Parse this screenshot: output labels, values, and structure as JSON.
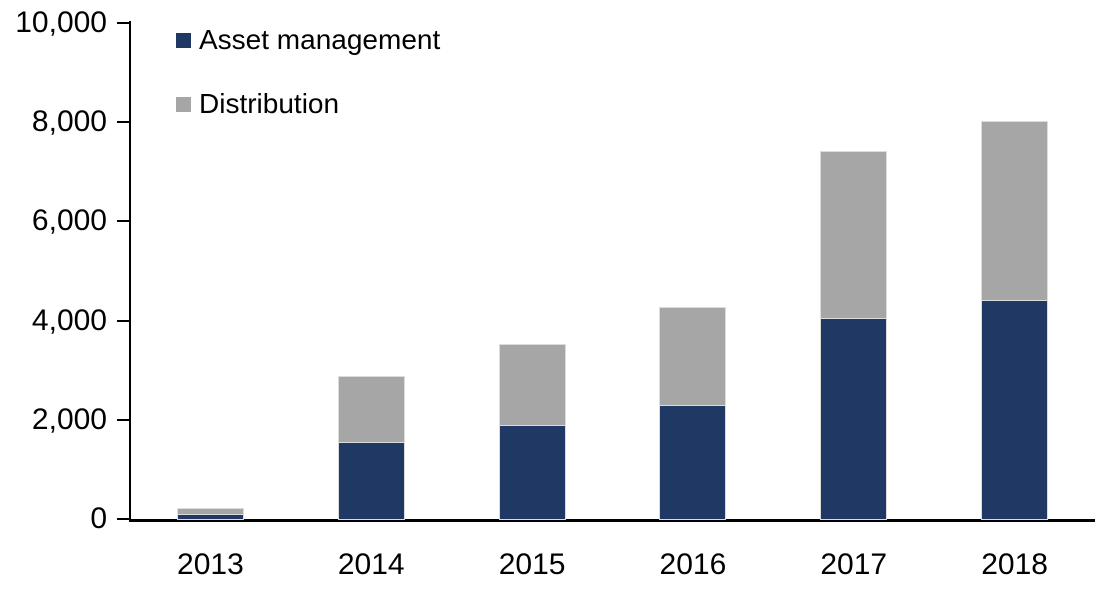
{
  "chart_data": {
    "type": "bar",
    "stacked": true,
    "title": "",
    "categories": [
      "2013",
      "2014",
      "2015",
      "2016",
      "2017",
      "2018"
    ],
    "series": [
      {
        "name": "Asset management",
        "color": "#1F3864",
        "values": [
          100,
          1550,
          1900,
          2300,
          4050,
          4420
        ]
      },
      {
        "name": "Distribution",
        "color": "#A6A6A6",
        "values": [
          100,
          1320,
          1600,
          1950,
          3350,
          3580
        ]
      }
    ],
    "totals": [
      200,
      2870,
      3500,
      4250,
      7400,
      8000
    ],
    "ylim": [
      0,
      10000
    ],
    "yticks": [
      {
        "value": 0,
        "label": "0"
      },
      {
        "value": 2000,
        "label": "2,000"
      },
      {
        "value": 4000,
        "label": "4,000"
      },
      {
        "value": 6000,
        "label": "6,000"
      },
      {
        "value": 8000,
        "label": "8,000"
      },
      {
        "value": 10000,
        "label": "10,000"
      }
    ],
    "grid": false,
    "legend_position": "top-left",
    "axis_color": "#000000",
    "text_color": "#000000",
    "background_color": "#ffffff"
  }
}
